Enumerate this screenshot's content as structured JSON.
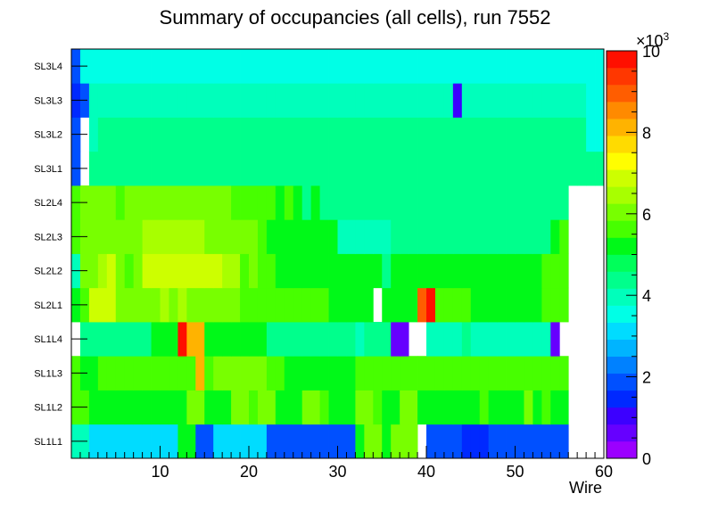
{
  "chart_data": {
    "type": "heatmap",
    "title": "Summary of occupancies (all cells),      run 7552",
    "xlabel": "Wire",
    "ylabel": "",
    "xlim": [
      0,
      60
    ],
    "x_ticks": [
      10,
      20,
      30,
      40,
      50,
      60
    ],
    "y_categories": [
      "SL1L1",
      "SL1L2",
      "SL1L3",
      "SL1L4",
      "SL2L1",
      "SL2L2",
      "SL2L3",
      "SL2L4",
      "SL3L1",
      "SL3L2",
      "SL3L3",
      "SL3L4"
    ],
    "z_range": [
      0,
      10
    ],
    "z_ticks": [
      0,
      2,
      4,
      6,
      8,
      10
    ],
    "z_exponent_label": "×10",
    "z_exponent": "3",
    "cells": [
      [
        4,
        4,
        3,
        3,
        3,
        3,
        3,
        3,
        3,
        3,
        3,
        3,
        5,
        5,
        2,
        2,
        3,
        3,
        3,
        3,
        3,
        3,
        2,
        2,
        2,
        1.8,
        2,
        2,
        2,
        1.8,
        1.8,
        1.8,
        5,
        6,
        6,
        5,
        6,
        6,
        6,
        0,
        1.8,
        1.8,
        1.8,
        1.8,
        1.4,
        1.4,
        1.4,
        1.8,
        1.8,
        1.8,
        1.8,
        1.8,
        1.8,
        1.8,
        1.8,
        1.8,
        0,
        0,
        0,
        0
      ],
      [
        5.5,
        5.5,
        5,
        5,
        5,
        5,
        5,
        5,
        5,
        5,
        5,
        5,
        5,
        6,
        6,
        5,
        5,
        5,
        6,
        6,
        5.5,
        6,
        6,
        5,
        5,
        5,
        6,
        6,
        5.5,
        5,
        5,
        5,
        6,
        6,
        5.5,
        5,
        5,
        6,
        6,
        5,
        5,
        5,
        5,
        5,
        5,
        5,
        5.5,
        5,
        5,
        5,
        5,
        6,
        5,
        5.5,
        5,
        5,
        0,
        0,
        0,
        0
      ],
      [
        5.5,
        5,
        5,
        5.5,
        5.5,
        5.5,
        5.5,
        5.5,
        5.5,
        5.5,
        5.5,
        5.5,
        5.5,
        5.5,
        8,
        5.5,
        6,
        6,
        6,
        6,
        6,
        6,
        5.5,
        5.5,
        5,
        5,
        5,
        5,
        5,
        5,
        5,
        5,
        5.5,
        5.5,
        5.5,
        5.5,
        5.5,
        5.5,
        5.5,
        5.5,
        5.5,
        5.5,
        5.5,
        5.5,
        5.5,
        5.5,
        5.5,
        5.5,
        5.5,
        5.5,
        5.5,
        5.5,
        5.5,
        5.5,
        5.5,
        5.5,
        0,
        0,
        0,
        0
      ],
      [
        0,
        4.2,
        4.2,
        4.2,
        4.2,
        4.2,
        4.2,
        4.5,
        4.5,
        5,
        5,
        5,
        10,
        8,
        8,
        5,
        5,
        5,
        5,
        5,
        5,
        5,
        4.5,
        4.5,
        4.5,
        4.5,
        4.5,
        4.5,
        4.2,
        4.5,
        4.5,
        4.5,
        4,
        4.2,
        4.5,
        4.5,
        0.6,
        0.6,
        0,
        0,
        4,
        4,
        4,
        4,
        4.2,
        3.8,
        3.8,
        3.8,
        3.8,
        3.8,
        3.8,
        3.8,
        3.8,
        3.8,
        0.6,
        0,
        0,
        0,
        0,
        0
      ],
      [
        5,
        5.5,
        7,
        7,
        7,
        6,
        6,
        6,
        6,
        6,
        6.5,
        6,
        6.5,
        6,
        6,
        6,
        6,
        6,
        6,
        5.5,
        5.5,
        5.5,
        5.5,
        5.5,
        5.5,
        5.5,
        5.5,
        5.5,
        5.5,
        5,
        5,
        5,
        5,
        5,
        0,
        5,
        5,
        5,
        5,
        9,
        10,
        5.5,
        5.5,
        5.5,
        5.5,
        5,
        5,
        5,
        5,
        5,
        5,
        5,
        5,
        5.5,
        5.5,
        5.5,
        0,
        0,
        0,
        0
      ],
      [
        4,
        6,
        6,
        6.5,
        7,
        6,
        5.5,
        6,
        7,
        7,
        7,
        7,
        7,
        7,
        7,
        7,
        7,
        6.5,
        6.5,
        5.5,
        6,
        5.5,
        5.5,
        5,
        5,
        5,
        5,
        5,
        5,
        5,
        5,
        5,
        5,
        5,
        5,
        4.5,
        5,
        5,
        5,
        5,
        5,
        5,
        5,
        5,
        5,
        5,
        5,
        5,
        5,
        5,
        5,
        5,
        5,
        5.5,
        5.5,
        5.5,
        0,
        0,
        0,
        0
      ],
      [
        5.5,
        6,
        6,
        6,
        6,
        6,
        6,
        6,
        6.5,
        6.5,
        6.5,
        6.5,
        6.5,
        6.5,
        6.5,
        6,
        6,
        6,
        6,
        6,
        6,
        5.5,
        5,
        5,
        5,
        5,
        5,
        5,
        5,
        5,
        4,
        4,
        4,
        4,
        4,
        4,
        4.5,
        4.5,
        4.5,
        4.5,
        4.5,
        4.5,
        4.5,
        4.5,
        4.5,
        4.2,
        4.2,
        4.2,
        4.2,
        4.2,
        4.2,
        4.2,
        4.2,
        4.5,
        5,
        5.5,
        0,
        0,
        0,
        0
      ],
      [
        5.5,
        6,
        6,
        6,
        6,
        5.5,
        6,
        6,
        6,
        6,
        6,
        6,
        6,
        6,
        6,
        6,
        6,
        6,
        5.5,
        5.5,
        5.5,
        5.5,
        5.5,
        5,
        5.5,
        5,
        4.5,
        5,
        4.5,
        4.2,
        4.2,
        4.2,
        4.2,
        4.2,
        4.2,
        4.5,
        4.5,
        4.5,
        4.5,
        4.5,
        4.5,
        4.5,
        4.5,
        4.5,
        4.5,
        4.5,
        4.5,
        4.5,
        4.5,
        4.5,
        4.5,
        4.2,
        4.2,
        4.2,
        4.2,
        4.5,
        0,
        0,
        0,
        0
      ],
      [
        1.8,
        0,
        4.2,
        4.5,
        4.5,
        4.5,
        4.5,
        4.5,
        4.5,
        4.5,
        4.5,
        4.5,
        4.5,
        4.5,
        4.5,
        4.5,
        4.5,
        4.5,
        4.5,
        4.5,
        4.5,
        4.5,
        4.5,
        4.5,
        4.5,
        4.5,
        4.5,
        4.5,
        4.5,
        4.5,
        4.5,
        4.5,
        4.5,
        4.5,
        4.5,
        4.5,
        4.5,
        4.5,
        4.5,
        4.5,
        4.5,
        4.5,
        4.5,
        4.5,
        4.5,
        4.5,
        4.5,
        4.5,
        4.5,
        4.5,
        4.5,
        4.5,
        4.5,
        4.5,
        4.5,
        4.5,
        4.5,
        4.5,
        4.5,
        4.5
      ],
      [
        1.8,
        0,
        4,
        4.2,
        4.2,
        4.2,
        4.2,
        4.2,
        4.2,
        4.2,
        4.2,
        4.2,
        4.2,
        4.2,
        4.2,
        4.2,
        4.2,
        4.2,
        4.2,
        4.2,
        4.2,
        4.2,
        4.2,
        4.2,
        4.2,
        4.2,
        4.2,
        4.2,
        4.2,
        4.2,
        4.2,
        4.2,
        4.2,
        4.2,
        4.2,
        4.2,
        4.2,
        4.2,
        4.2,
        4.2,
        4.2,
        4.2,
        4.2,
        4.2,
        4.2,
        4.2,
        4.2,
        4.2,
        4.2,
        4.2,
        4.2,
        4.2,
        4.2,
        4.2,
        4.2,
        4.2,
        4.2,
        4.2,
        3.5,
        3.5
      ],
      [
        1.4,
        1.8,
        4,
        4,
        4,
        4,
        4,
        4,
        4,
        4,
        4,
        4,
        4,
        4,
        4,
        4,
        4,
        4,
        4,
        4,
        4,
        4,
        4,
        4,
        4,
        4,
        4,
        4,
        4,
        4,
        4,
        4,
        4,
        4,
        4,
        4,
        4,
        4,
        4,
        4,
        4,
        4,
        4,
        0.9,
        4,
        4,
        4,
        4,
        4,
        4,
        4,
        4,
        4,
        4,
        4,
        4,
        4,
        4,
        3.5,
        3.5
      ],
      [
        1.8,
        3.5,
        3.5,
        3.5,
        3.5,
        3.5,
        3.5,
        3.5,
        3.5,
        3.5,
        3.5,
        3.5,
        3.5,
        3.5,
        3.5,
        3.5,
        3.5,
        3.5,
        3.5,
        3.5,
        3.5,
        3.5,
        3.5,
        3.5,
        3.5,
        3.5,
        3.5,
        3.5,
        3.5,
        3.5,
        3.5,
        3.5,
        3.5,
        3.5,
        3.5,
        3.5,
        3.5,
        3.5,
        3.5,
        3.5,
        3.5,
        3.5,
        3.5,
        3.5,
        3.5,
        3.5,
        3.5,
        3.5,
        3.5,
        3.5,
        3.5,
        3.5,
        3.5,
        3.5,
        3.5,
        3.5,
        3.5,
        3.5,
        3.5,
        3.5
      ]
    ]
  }
}
